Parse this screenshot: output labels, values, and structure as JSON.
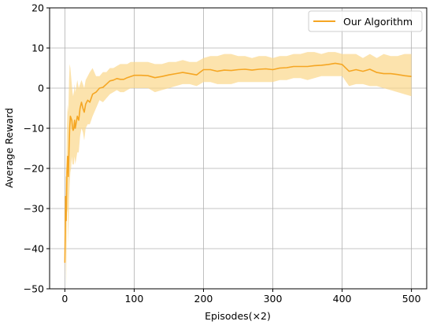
{
  "chart_data": {
    "type": "line",
    "xlabel": "Episodes(×2)",
    "ylabel": "Average Reward",
    "xlim": [
      -22,
      522
    ],
    "ylim": [
      -50,
      20
    ],
    "x_ticks": [
      0,
      100,
      200,
      300,
      400,
      500
    ],
    "y_ticks": [
      -50,
      -40,
      -30,
      -20,
      -10,
      0,
      10,
      20
    ],
    "grid": true,
    "legend_position": "top-right",
    "colors": {
      "line": "#f5a623",
      "band": "#fbd78a"
    },
    "series": [
      {
        "name": "Our Algorithm",
        "x": [
          0,
          1,
          2,
          3,
          4,
          5,
          6,
          7,
          8,
          9,
          10,
          11,
          12,
          13,
          14,
          15,
          16,
          18,
          20,
          22,
          24,
          26,
          28,
          30,
          33,
          36,
          40,
          45,
          50,
          55,
          60,
          65,
          70,
          75,
          80,
          85,
          90,
          95,
          100,
          110,
          120,
          130,
          140,
          150,
          160,
          170,
          180,
          190,
          200,
          210,
          220,
          230,
          240,
          250,
          260,
          270,
          280,
          290,
          300,
          310,
          320,
          330,
          340,
          350,
          360,
          370,
          380,
          390,
          400,
          410,
          420,
          430,
          440,
          450,
          460,
          470,
          480,
          490,
          500
        ],
        "mean": [
          -43.5,
          -27,
          -33,
          -21,
          -17,
          -22,
          -15,
          -10,
          -7,
          -7.5,
          -8,
          -10,
          -10.5,
          -10,
          -8,
          -10,
          -9,
          -7,
          -8,
          -5,
          -3.5,
          -5,
          -6,
          -4,
          -3,
          -3.5,
          -1.5,
          -1,
          0,
          0.2,
          1,
          1.8,
          2,
          2.4,
          2.2,
          2.2,
          2.6,
          2.9,
          3.2,
          3.2,
          3.1,
          2.6,
          2.9,
          3.3,
          3.6,
          3.9,
          3.6,
          3.3,
          4.6,
          4.6,
          4.2,
          4.5,
          4.4,
          4.6,
          4.7,
          4.5,
          4.7,
          4.8,
          4.6,
          5.0,
          5.1,
          5.4,
          5.4,
          5.4,
          5.6,
          5.7,
          5.9,
          6.2,
          5.9,
          4.2,
          4.6,
          4.2,
          4.7,
          3.9,
          3.6,
          3.6,
          3.4,
          3.1,
          2.9
        ],
        "upper": [
          -39,
          -22,
          -22,
          -10,
          -4,
          -6,
          2,
          6,
          5,
          3,
          1,
          -1,
          -2,
          -1,
          1,
          -1,
          0,
          2,
          0,
          1,
          2,
          1,
          0,
          2,
          3,
          4,
          5,
          3,
          3,
          4,
          4,
          5,
          5,
          5.5,
          6,
          6,
          6,
          6.5,
          6.5,
          6.5,
          6.5,
          6,
          6,
          6.5,
          6.5,
          7,
          6.5,
          6.5,
          7.5,
          8,
          8,
          8.5,
          8.5,
          8,
          8,
          7.5,
          8,
          8,
          7.5,
          8,
          8,
          8.5,
          8.5,
          9,
          9,
          8.5,
          9,
          9,
          8.5,
          8.5,
          8.5,
          7.5,
          8.5,
          7.5,
          8.5,
          8,
          8,
          8.5,
          8.5
        ],
        "lower": [
          -48,
          -33,
          -50,
          -30,
          -31,
          -39,
          -28,
          -24,
          -21,
          -20,
          -17,
          -19,
          -19,
          -19,
          -17,
          -19,
          -18,
          -16,
          -16,
          -12,
          -10,
          -11,
          -13,
          -10,
          -9,
          -9,
          -7,
          -5,
          -3,
          -3.5,
          -2.5,
          -1.5,
          -1,
          -0.5,
          -1,
          -1,
          -0.5,
          0,
          0,
          0,
          0,
          -1,
          -0.5,
          0,
          0.5,
          1,
          1,
          0.5,
          1.5,
          1.5,
          1,
          1,
          1,
          1.5,
          1.5,
          1.5,
          1.5,
          1.5,
          1.5,
          2,
          2,
          2.5,
          2.5,
          2,
          2.5,
          3,
          3,
          3,
          3,
          0.5,
          1,
          1,
          0.5,
          0.5,
          0,
          -0.5,
          -1,
          -1.5,
          -2
        ]
      }
    ]
  }
}
